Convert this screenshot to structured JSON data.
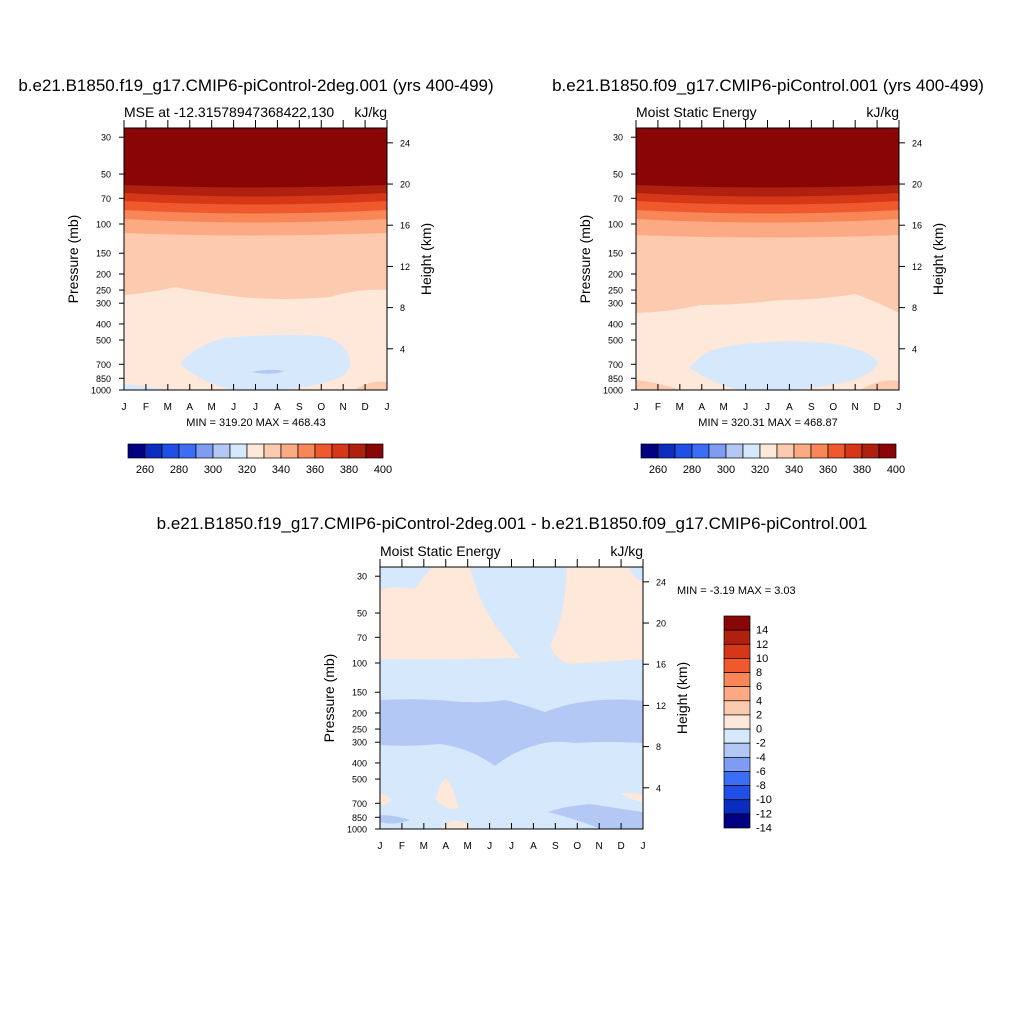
{
  "palette": {
    "abs_colors": [
      "#000080",
      "#0a2dbf",
      "#1f4fe6",
      "#3c6ef5",
      "#7e9df2",
      "#b3c8f5",
      "#d6e8fc",
      "#fde8d9",
      "#fccaae",
      "#fbaa84",
      "#f88656",
      "#f0582e",
      "#d73719",
      "#b0200f",
      "#8a0505"
    ],
    "abs_levels": [
      "260",
      "280",
      "300",
      "320",
      "340",
      "360",
      "380",
      "400"
    ],
    "diff_colors": [
      "#000080",
      "#0a2dbf",
      "#1f4fe6",
      "#3c6ef5",
      "#7e9df2",
      "#b3c8f5",
      "#d6e8fc",
      "#fde8d9",
      "#fccaae",
      "#fbaa84",
      "#f88656",
      "#f0582e",
      "#d73719",
      "#b0200f",
      "#8a0505"
    ],
    "diff_levels": [
      "14",
      "12",
      "10",
      "8",
      "6",
      "4",
      "2",
      "0",
      "-2",
      "-4",
      "-6",
      "-8",
      "-10",
      "-12",
      "-14"
    ]
  },
  "axes": {
    "months": [
      "J",
      "F",
      "M",
      "A",
      "M",
      "J",
      "J",
      "A",
      "S",
      "O",
      "N",
      "D",
      "J"
    ],
    "pressure_ticks": [
      "30",
      "50",
      "70",
      "100",
      "150",
      "200",
      "250",
      "300",
      "400",
      "500",
      "700",
      "850",
      "1000"
    ],
    "height_ticks": [
      "24",
      "20",
      "16",
      "12",
      "8",
      "4"
    ],
    "pressure_label": "Pressure (mb)",
    "height_label": "Height (km)"
  },
  "chart_data": [
    {
      "type": "heatmap",
      "title": "b.e21.B1850.f19_g17.CMIP6-piControl-2deg.001 (yrs 400-499)",
      "left_string": "MSE at -12.31578947368422,130",
      "right_string": "kJ/kg",
      "stats": "MIN = 319.20 MAX = 468.43",
      "x": [
        "J",
        "F",
        "M",
        "A",
        "M",
        "J",
        "J",
        "A",
        "S",
        "O",
        "N",
        "D",
        "J"
      ],
      "ylabel": "Pressure (mb)",
      "y2label": "Height (km)",
      "levels": [
        260,
        270,
        280,
        290,
        300,
        310,
        320,
        330,
        340,
        350,
        360,
        370,
        380,
        390,
        400
      ]
    },
    {
      "type": "heatmap",
      "title": "b.e21.B1850.f09_g17.CMIP6-piControl.001 (yrs 400-499)",
      "left_string": "Moist Static Energy",
      "right_string": "kJ/kg",
      "stats": "MIN = 320.31 MAX = 468.87",
      "x": [
        "J",
        "F",
        "M",
        "A",
        "M",
        "J",
        "J",
        "A",
        "S",
        "O",
        "N",
        "D",
        "J"
      ],
      "ylabel": "Pressure (mb)",
      "y2label": "Height (km)",
      "levels": [
        260,
        270,
        280,
        290,
        300,
        310,
        320,
        330,
        340,
        350,
        360,
        370,
        380,
        390,
        400
      ]
    },
    {
      "type": "heatmap",
      "title": "b.e21.B1850.f19_g17.CMIP6-piControl-2deg.001 - b.e21.B1850.f09_g17.CMIP6-piControl.001",
      "left_string": "Moist Static Energy",
      "right_string": "kJ/kg",
      "stats": "MIN =  -3.19 MAX =   3.03",
      "x": [
        "J",
        "F",
        "M",
        "A",
        "M",
        "J",
        "J",
        "A",
        "S",
        "O",
        "N",
        "D",
        "J"
      ],
      "ylabel": "Pressure (mb)",
      "y2label": "Height (km)",
      "levels": [
        -14,
        -12,
        -10,
        -8,
        -6,
        -4,
        -2,
        0,
        2,
        4,
        6,
        8,
        10,
        12,
        14
      ]
    }
  ]
}
